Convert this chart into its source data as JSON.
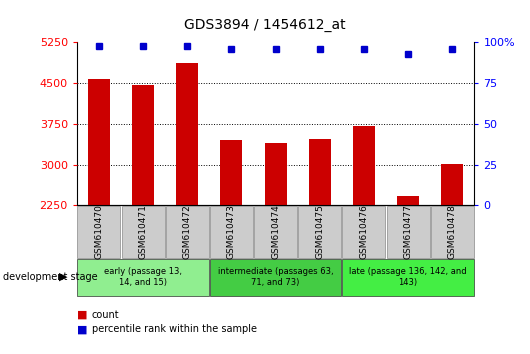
{
  "title": "GDS3894 / 1454612_at",
  "samples": [
    "GSM610470",
    "GSM610471",
    "GSM610472",
    "GSM610473",
    "GSM610474",
    "GSM610475",
    "GSM610476",
    "GSM610477",
    "GSM610478"
  ],
  "counts": [
    4570,
    4460,
    4870,
    3450,
    3390,
    3480,
    3720,
    2430,
    3010
  ],
  "percentile_ranks": [
    98,
    98,
    98,
    96,
    96,
    96,
    96,
    93,
    96
  ],
  "ylim_left": [
    2250,
    5250
  ],
  "ylim_right": [
    0,
    100
  ],
  "yticks_left": [
    2250,
    3000,
    3750,
    4500,
    5250
  ],
  "yticks_right": [
    0,
    25,
    50,
    75,
    100
  ],
  "bar_color": "#cc0000",
  "dot_color": "#0000cc",
  "stage_groups": [
    {
      "label": "early (passage 13,\n14, and 15)",
      "indices": [
        0,
        1,
        2
      ],
      "color": "#90ee90"
    },
    {
      "label": "intermediate (passages 63,\n71, and 73)",
      "indices": [
        3,
        4,
        5
      ],
      "color": "#44cc44"
    },
    {
      "label": "late (passage 136, 142, and\n143)",
      "indices": [
        6,
        7,
        8
      ],
      "color": "#44ee44"
    }
  ],
  "tick_bg_color": "#cccccc",
  "legend_count_label": "count",
  "legend_pct_label": "percentile rank within the sample",
  "dev_stage_label": "development stage",
  "background_color": "#ffffff",
  "grid_yticks": [
    3000,
    3750,
    4500
  ]
}
